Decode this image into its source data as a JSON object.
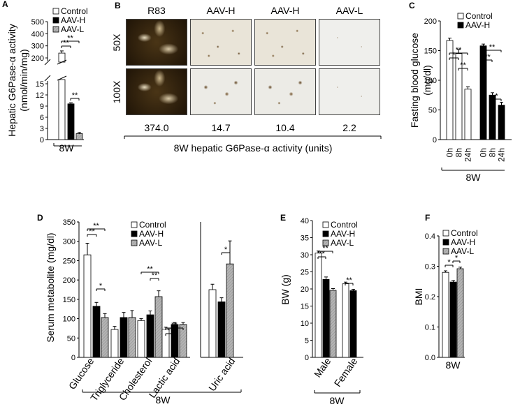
{
  "panels": {
    "A": {
      "letter": "A"
    },
    "B": {
      "letter": "B"
    },
    "C": {
      "letter": "C"
    },
    "D": {
      "letter": "D"
    },
    "E": {
      "letter": "E"
    },
    "F": {
      "letter": "F"
    }
  },
  "colors": {
    "control": "#ffffff",
    "aav_h": "#000000",
    "aav_l": "#aaaaaa"
  },
  "chart_data": [
    {
      "id": "A",
      "type": "bar",
      "ylabel": "Hepatic G6Pase-α activity\n(nmol/min/mg)",
      "ylabel_line1": "Hepatic G6Pase-α activity",
      "ylabel_line2": "(nmol/min/mg)",
      "legend": [
        "Control",
        "AAV-H",
        "AAV-L"
      ],
      "categories": [
        "8W"
      ],
      "series": [
        {
          "name": "Control",
          "values": [
            240
          ],
          "err": [
            18
          ]
        },
        {
          "name": "AAV-H",
          "values": [
            9.6
          ],
          "err": [
            0.3
          ]
        },
        {
          "name": "AAV-L",
          "values": [
            1.6
          ],
          "err": [
            0.3
          ]
        }
      ],
      "axis_break": true,
      "yticks_lower": [
        "0",
        "3",
        "6",
        "9",
        "12",
        "15"
      ],
      "yticks_upper": [
        "200",
        "300",
        "400",
        "500"
      ],
      "significance": [
        "**",
        "**",
        "**"
      ]
    },
    {
      "id": "B",
      "type": "table",
      "columns": [
        "R83",
        "AAV-H",
        "AAV-H",
        "AAV-L"
      ],
      "rows": [
        "50X",
        "100X"
      ],
      "values": [
        "374.0",
        "14.7",
        "10.4",
        "2.2"
      ],
      "xlabel": "8W hepatic G6Pase-α activity (units)"
    },
    {
      "id": "C",
      "type": "bar",
      "ylabel_line1": "Fasting blood glucose",
      "ylabel_line2": "(mg/dl)",
      "legend": [
        "Control",
        "AAV-H"
      ],
      "groups": [
        "Control",
        "AAV-H"
      ],
      "categories": [
        "0h",
        "8h",
        "24h"
      ],
      "series": [
        {
          "name": "Control",
          "values": [
            167,
            145,
            85
          ],
          "err": [
            4,
            7,
            4
          ]
        },
        {
          "name": "AAV-H",
          "values": [
            158,
            75,
            58
          ],
          "err": [
            3,
            4,
            5
          ]
        }
      ],
      "ylim": [
        0,
        200
      ],
      "yticks": [
        "0",
        "50",
        "100",
        "150",
        "200"
      ],
      "xgroup": "8W",
      "significance": [
        "**",
        "*",
        "**",
        "**",
        "**",
        "*"
      ]
    },
    {
      "id": "D",
      "type": "bar",
      "ylabel": "Serum metabolite (mg/dl)",
      "legend": [
        "Control",
        "AAV-H",
        "AAV-L"
      ],
      "categories": [
        "Glucose",
        "Triglyceride",
        "Cholesterol",
        "Lactic acid"
      ],
      "series": [
        {
          "name": "Control",
          "values": [
            265,
            72,
            95,
            73
          ],
          "err": [
            30,
            8,
            5,
            5
          ]
        },
        {
          "name": "AAV-H",
          "values": [
            132,
            103,
            110,
            85
          ],
          "err": [
            10,
            13,
            10,
            5
          ]
        },
        {
          "name": "AAV-L",
          "values": [
            103,
            103,
            157,
            85
          ],
          "err": [
            10,
            18,
            15,
            5
          ]
        }
      ],
      "ylim": [
        0,
        350
      ],
      "yticks": [
        "0",
        "50",
        "100",
        "150",
        "200",
        "250",
        "300",
        "350"
      ],
      "right_panel": {
        "categories": [
          "Uric acid"
        ],
        "series": [
          {
            "name": "Control",
            "values": [
              2.5
            ],
            "err": [
              0.2
            ]
          },
          {
            "name": "AAV-H",
            "values": [
              2.05
            ],
            "err": [
              0.15
            ]
          },
          {
            "name": "AAV-L",
            "values": [
              3.45
            ],
            "err": [
              0.85
            ]
          }
        ],
        "ylim": [
          0,
          5
        ]
      },
      "xgroup": "8W",
      "significance": [
        "**",
        "**",
        "*",
        "**",
        "**",
        "**",
        "**",
        "*"
      ]
    },
    {
      "id": "E",
      "type": "bar",
      "ylabel": "BW (g)",
      "legend": [
        "Control",
        "AAV-H",
        "AAV-L"
      ],
      "categories": [
        "Male",
        "Female"
      ],
      "series": [
        {
          "name": "Control",
          "values": [
            30.5,
            21.5
          ],
          "err": [
            0.6,
            0.5
          ]
        },
        {
          "name": "AAV-H",
          "values": [
            22.8,
            19.5
          ],
          "err": [
            0.7,
            0.4
          ]
        },
        {
          "name": "AAV-L",
          "values": [
            19.6,
            null
          ],
          "err": [
            0.5,
            null
          ]
        }
      ],
      "ylim": [
        0,
        40
      ],
      "yticks": [
        "0",
        "5",
        "10",
        "15",
        "20",
        "25",
        "30",
        "35",
        "40"
      ],
      "xgroup": "8W",
      "significance": [
        "**",
        "**",
        "**"
      ]
    },
    {
      "id": "F",
      "type": "bar",
      "ylabel": "BMI",
      "legend": [
        "Control",
        "AAV-H",
        "AAV-L"
      ],
      "categories": [
        "8W"
      ],
      "series": [
        {
          "name": "Control",
          "values": [
            0.28
          ],
          "err": [
            0.005
          ]
        },
        {
          "name": "AAV-H",
          "values": [
            0.248
          ],
          "err": [
            0.005
          ]
        },
        {
          "name": "AAV-L",
          "values": [
            0.292
          ],
          "err": [
            0.005
          ]
        }
      ],
      "ylim": [
        0,
        0.4
      ],
      "yticks": [
        "0.0",
        "0.1",
        "0.2",
        "0.3",
        "0.4"
      ],
      "significance": [
        "*",
        "*"
      ]
    }
  ]
}
